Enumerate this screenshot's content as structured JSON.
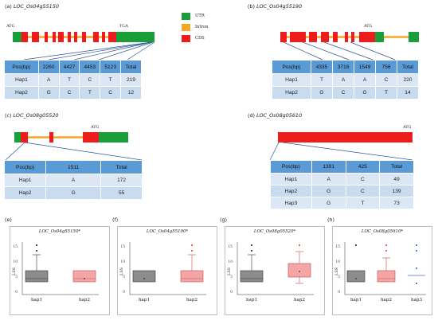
{
  "panels": {
    "a": {
      "letter": "(a)",
      "gene": "LOC_Os04g55150",
      "start_label": "ATG",
      "end_label": "TGA",
      "table": {
        "header": [
          "Pos(bp)",
          "2260",
          "4427",
          "4453",
          "5123",
          "Total"
        ],
        "rows": [
          [
            "Hap1",
            "A",
            "T",
            "C",
            "T",
            "219"
          ],
          [
            "Hap2",
            "G",
            "C",
            "T",
            "C",
            "12"
          ]
        ]
      }
    },
    "b": {
      "letter": "(b)",
      "gene": "LOC_Os04g55190",
      "start_label": "ATG",
      "table": {
        "header": [
          "Pos(bp)",
          "4335",
          "3718",
          "1549",
          "756",
          "Total"
        ],
        "rows": [
          [
            "Hap1",
            "T",
            "A",
            "A",
            "C",
            "220"
          ],
          [
            "Hap2",
            "G",
            "C",
            "G",
            "T",
            "14"
          ]
        ]
      }
    },
    "c": {
      "letter": "(c)",
      "gene": "LOC_Os08g05520",
      "start_label": "ATG",
      "table": {
        "header": [
          "Pos(bp)",
          "1511",
          "Total"
        ],
        "rows": [
          [
            "Hap1",
            "A",
            "172"
          ],
          [
            "Hap2",
            "G",
            "55"
          ]
        ]
      }
    },
    "d": {
      "letter": "(d)",
      "gene": "LOC_Os08g05610",
      "start_label": "ATG",
      "table": {
        "header": [
          "Pos(bp)",
          "1391",
          "425",
          "Total"
        ],
        "rows": [
          [
            "Hap1",
            "A",
            "C",
            "49"
          ],
          [
            "Hap2",
            "G",
            "C",
            "139"
          ],
          [
            "Hap3",
            "G",
            "T",
            "73"
          ]
        ]
      }
    }
  },
  "legend": {
    "items": [
      {
        "label": "UTR",
        "color": "#1a9e3a"
      },
      {
        "label": "Intron",
        "color": "#f5a623"
      },
      {
        "label": "CDS",
        "color": "#ef1c1c"
      }
    ]
  },
  "colors": {
    "utr": "#1a9e3a",
    "intron": "#f5a623",
    "cds": "#ef1c1c",
    "table_header": "#5b9bd5",
    "connector": "#2f5597"
  },
  "plots": {
    "e": {
      "letter": "(e)",
      "title": "LOC_Os04g55150*",
      "ylabel": "LSS",
      "xticks": [
        "hap1",
        "hap2"
      ],
      "yticks": [
        "15",
        "10",
        "5",
        "0"
      ]
    },
    "f": {
      "letter": "(f)",
      "title": "LOC_Os04g55190*",
      "ylabel": "LSS",
      "xticks": [
        "hap1",
        "hap2"
      ],
      "yticks": [
        "15",
        "10",
        "5",
        "0"
      ]
    },
    "g": {
      "letter": "(g)",
      "title": "LOC_Os08g05520*",
      "ylabel": "LSS",
      "xticks": [
        "hap1",
        "hap2"
      ],
      "yticks": [
        "15",
        "10",
        "5",
        "0"
      ]
    },
    "h": {
      "letter": "(h)",
      "title": "LOC_Os08g05610*",
      "ylabel": "LSS",
      "xticks": [
        "hap1",
        "hap2",
        "hap3"
      ],
      "yticks": [
        "15",
        "10",
        "5",
        "0"
      ]
    }
  }
}
